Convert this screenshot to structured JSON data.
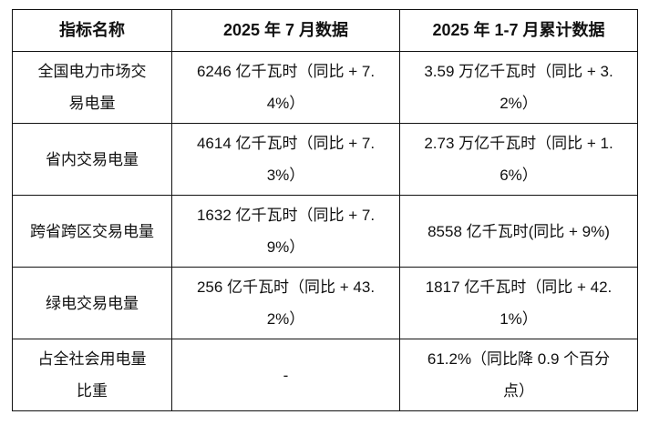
{
  "headers": [
    "指标名称",
    "2025 年 7 月数据",
    "2025 年 1-7 月累计数据"
  ],
  "rows": [
    {
      "name": "全国电力市场交易电量",
      "july": "6246 亿千瓦时（同比 + 7.4%）",
      "cumulative": "3.59 万亿千瓦时（同比 + 3.2%）"
    },
    {
      "name": "省内交易电量",
      "july": "4614 亿千瓦时（同比 + 7.3%）",
      "cumulative": "2.73 万亿千瓦时（同比 + 1.6%）"
    },
    {
      "name": "跨省跨区交易电量",
      "july": "1632 亿千瓦时（同比 + 7.9%）",
      "cumulative": "8558 亿千瓦时(同比 + 9%)"
    },
    {
      "name": "绿电交易电量",
      "july": "256 亿千瓦时（同比 + 43.2%）",
      "cumulative": "1817 亿千瓦时（同比 + 42.1%）"
    },
    {
      "name": "占全社会用电量比重",
      "july": "-",
      "cumulative": "61.2%（同比降 0.9 个百分点）"
    }
  ]
}
